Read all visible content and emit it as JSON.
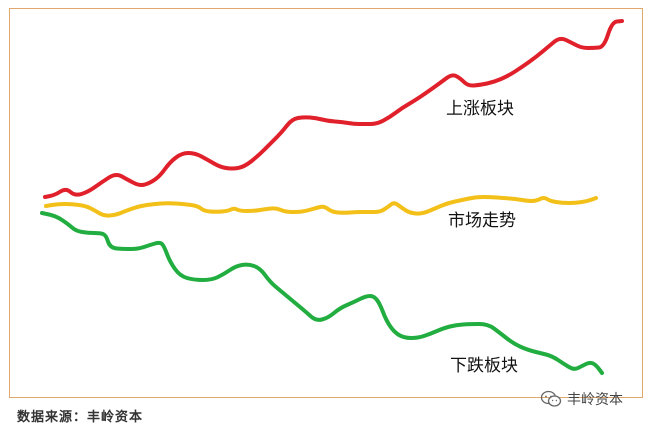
{
  "chart_data": {
    "type": "line",
    "title": "",
    "xlabel": "",
    "ylabel": "",
    "grid": false,
    "legend": "inline labels",
    "ylim": [
      0,
      429
    ],
    "series": [
      {
        "name": "上涨板块",
        "color": "#e0202a",
        "points": [
          [
            45,
            197
          ],
          [
            55,
            195
          ],
          [
            66,
            188
          ],
          [
            75,
            196
          ],
          [
            88,
            192
          ],
          [
            102,
            182
          ],
          [
            116,
            173
          ],
          [
            128,
            180
          ],
          [
            140,
            186
          ],
          [
            150,
            183
          ],
          [
            160,
            176
          ],
          [
            170,
            162
          ],
          [
            182,
            153
          ],
          [
            195,
            153
          ],
          [
            208,
            160
          ],
          [
            220,
            167
          ],
          [
            232,
            169
          ],
          [
            244,
            167
          ],
          [
            258,
            156
          ],
          [
            271,
            143
          ],
          [
            282,
            132
          ],
          [
            292,
            119
          ],
          [
            304,
            117
          ],
          [
            316,
            118
          ],
          [
            328,
            121
          ],
          [
            342,
            122
          ],
          [
            354,
            124
          ],
          [
            364,
            124
          ],
          [
            377,
            124
          ],
          [
            390,
            117
          ],
          [
            402,
            108
          ],
          [
            414,
            101
          ],
          [
            426,
            93
          ],
          [
            440,
            83
          ],
          [
            452,
            74
          ],
          [
            460,
            78
          ],
          [
            468,
            86
          ],
          [
            480,
            85
          ],
          [
            494,
            82
          ],
          [
            508,
            76
          ],
          [
            522,
            67
          ],
          [
            536,
            57
          ],
          [
            548,
            47
          ],
          [
            560,
            37
          ],
          [
            572,
            43
          ],
          [
            582,
            48
          ],
          [
            594,
            48
          ],
          [
            604,
            47
          ],
          [
            612,
            22
          ],
          [
            622,
            21
          ]
        ]
      },
      {
        "name": "市场走势",
        "color": "#f2c018",
        "points": [
          [
            46,
            206
          ],
          [
            58,
            204
          ],
          [
            72,
            204
          ],
          [
            86,
            206
          ],
          [
            94,
            210
          ],
          [
            104,
            216
          ],
          [
            116,
            215
          ],
          [
            128,
            210
          ],
          [
            140,
            206
          ],
          [
            154,
            204
          ],
          [
            168,
            203
          ],
          [
            184,
            204
          ],
          [
            198,
            206
          ],
          [
            204,
            211
          ],
          [
            216,
            212
          ],
          [
            228,
            211
          ],
          [
            234,
            208
          ],
          [
            240,
            211
          ],
          [
            254,
            211
          ],
          [
            266,
            209
          ],
          [
            276,
            208
          ],
          [
            286,
            212
          ],
          [
            298,
            212
          ],
          [
            306,
            211
          ],
          [
            316,
            208
          ],
          [
            324,
            206
          ],
          [
            332,
            212
          ],
          [
            344,
            213
          ],
          [
            356,
            212
          ],
          [
            368,
            212
          ],
          [
            380,
            212
          ],
          [
            388,
            207
          ],
          [
            394,
            202
          ],
          [
            402,
            208
          ],
          [
            410,
            213
          ],
          [
            422,
            214
          ],
          [
            436,
            208
          ],
          [
            448,
            203
          ],
          [
            462,
            200
          ],
          [
            476,
            197
          ],
          [
            490,
            197
          ],
          [
            504,
            198
          ],
          [
            516,
            199
          ],
          [
            528,
            201
          ],
          [
            536,
            201
          ],
          [
            544,
            197
          ],
          [
            550,
            201
          ],
          [
            562,
            203
          ],
          [
            576,
            203
          ],
          [
            588,
            201
          ],
          [
            596,
            198
          ]
        ]
      },
      {
        "name": "下跌板块",
        "color": "#22ad40",
        "points": [
          [
            42,
            213
          ],
          [
            56,
            216
          ],
          [
            68,
            224
          ],
          [
            76,
            231
          ],
          [
            88,
            233
          ],
          [
            100,
            233
          ],
          [
            106,
            235
          ],
          [
            110,
            248
          ],
          [
            124,
            249
          ],
          [
            138,
            249
          ],
          [
            150,
            245
          ],
          [
            160,
            242
          ],
          [
            164,
            246
          ],
          [
            170,
            262
          ],
          [
            180,
            276
          ],
          [
            194,
            280
          ],
          [
            212,
            280
          ],
          [
            224,
            274
          ],
          [
            236,
            266
          ],
          [
            248,
            264
          ],
          [
            260,
            268
          ],
          [
            270,
            282
          ],
          [
            282,
            292
          ],
          [
            294,
            302
          ],
          [
            306,
            312
          ],
          [
            316,
            321
          ],
          [
            328,
            318
          ],
          [
            340,
            308
          ],
          [
            354,
            302
          ],
          [
            366,
            296
          ],
          [
            374,
            296
          ],
          [
            380,
            304
          ],
          [
            386,
            320
          ],
          [
            394,
            332
          ],
          [
            404,
            338
          ],
          [
            418,
            338
          ],
          [
            430,
            334
          ],
          [
            444,
            328
          ],
          [
            456,
            325
          ],
          [
            470,
            324
          ],
          [
            488,
            324
          ],
          [
            500,
            333
          ],
          [
            514,
            344
          ],
          [
            528,
            350
          ],
          [
            540,
            353
          ],
          [
            552,
            356
          ],
          [
            564,
            364
          ],
          [
            574,
            370
          ],
          [
            582,
            366
          ],
          [
            590,
            362
          ],
          [
            596,
            365
          ],
          [
            602,
            373
          ]
        ]
      }
    ],
    "series_labels": {
      "up_sector": "上涨板块",
      "market_trend": "市场走势",
      "down_sector": "下跌板块"
    },
    "source_note": "数据来源：丰岭资本",
    "watermark": "丰岭资本"
  }
}
